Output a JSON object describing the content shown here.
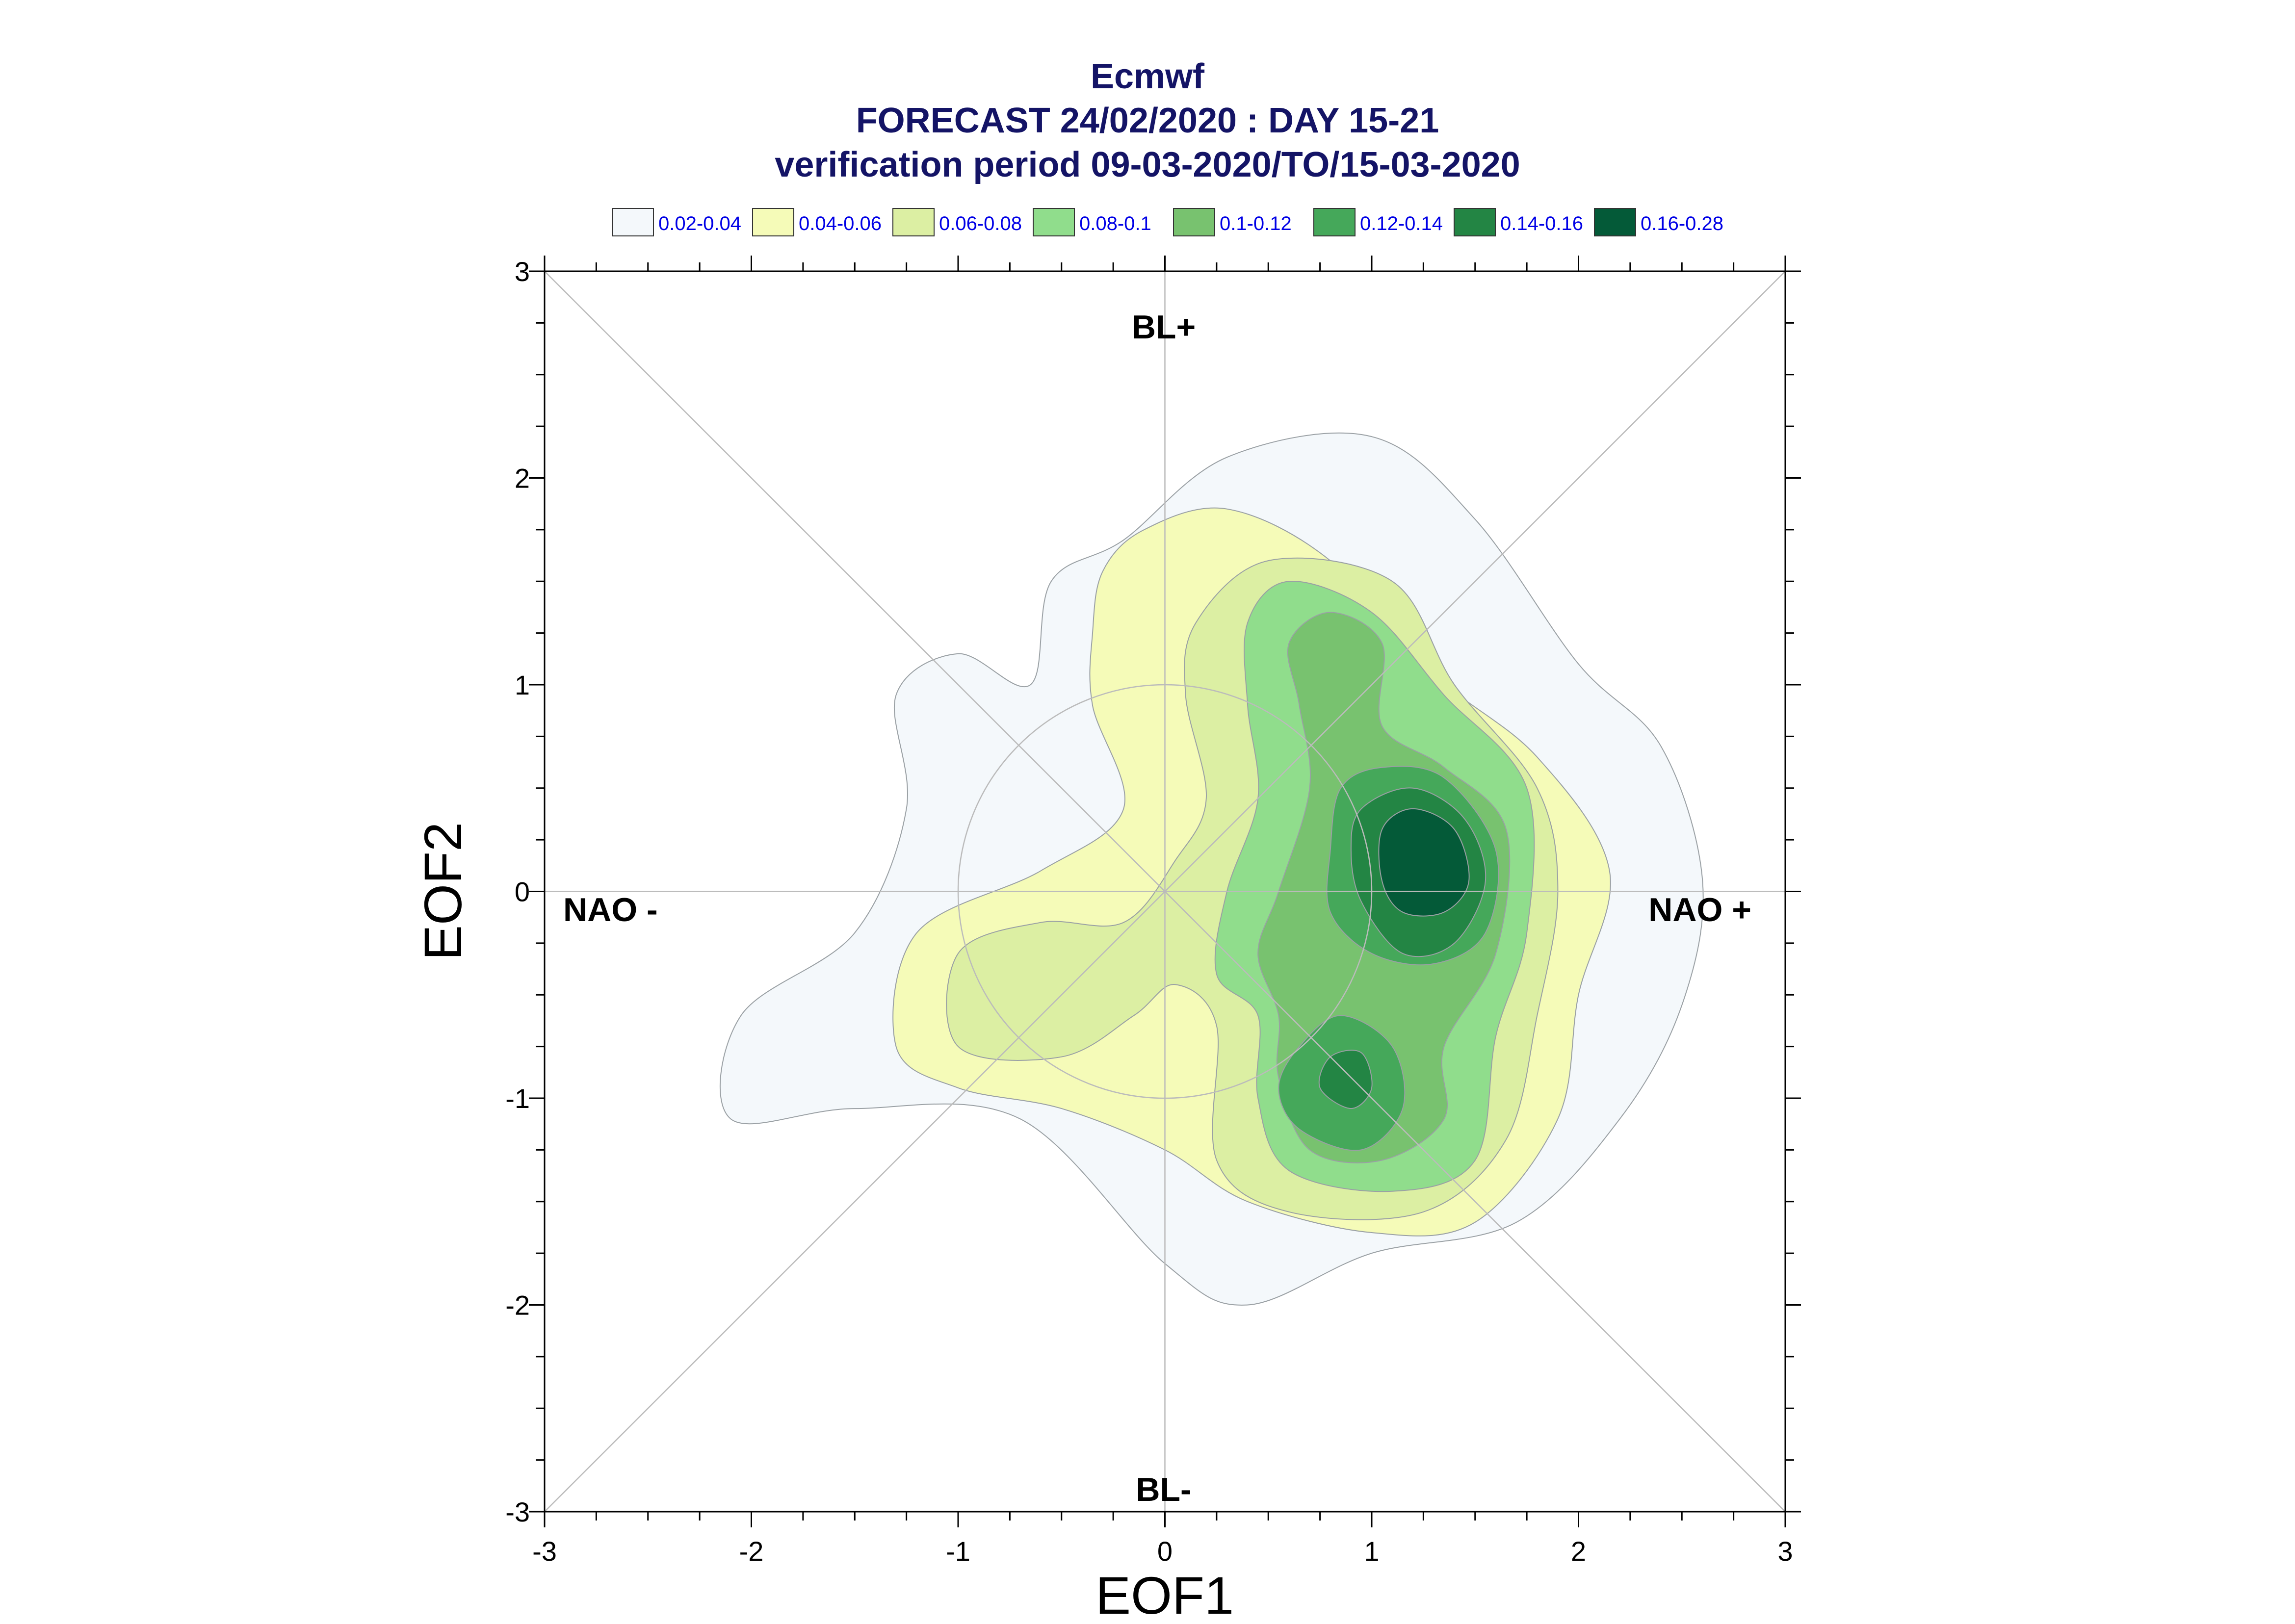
{
  "chart_data": {
    "type": "contour",
    "title": [
      "Ecmwf",
      "FORECAST 24/02/2020 : DAY 15-21",
      "verification period 09-03-2020/TO/15-03-2020"
    ],
    "xlabel": "EOF1",
    "ylabel": "EOF2",
    "xlim": [
      -3,
      3
    ],
    "ylim": [
      -3,
      3
    ],
    "xticks": [
      "-3",
      "-2",
      "-1",
      "0",
      "1",
      "2",
      "3"
    ],
    "yticks": [
      "-3",
      "-2",
      "-1",
      "0",
      "1",
      "2",
      "3"
    ],
    "regime_labels": {
      "top": "BL+",
      "bottom": "BL-",
      "left": "NAO -",
      "right": "NAO +"
    },
    "legend": [
      {
        "label": "0.02-0.04",
        "color": "#f4f8fb"
      },
      {
        "label": "0.04-0.06",
        "color": "#f5fbb8"
      },
      {
        "label": "0.06-0.08",
        "color": "#dcefa3"
      },
      {
        "label": "0.08-0.1",
        "color": "#90dd8c"
      },
      {
        "label": "0.1-0.12",
        "color": "#78c26f"
      },
      {
        "label": "0.12-0.14",
        "color": "#45a85a"
      },
      {
        "label": "0.14-0.16",
        "color": "#238544"
      },
      {
        "label": "0.16-0.28",
        "color": "#045a38"
      }
    ],
    "density_maxima": [
      {
        "x": 1.2,
        "y": 0.15,
        "range": "0.16-0.28"
      },
      {
        "x": 0.9,
        "y": -0.95,
        "range": "0.14-0.16"
      }
    ],
    "contours": [
      {
        "level": "0.02-0.04",
        "points": [
          [
            -0.65,
            1.0
          ],
          [
            -0.55,
            1.5
          ],
          [
            -0.2,
            1.7
          ],
          [
            0.3,
            2.1
          ],
          [
            1.0,
            2.2
          ],
          [
            1.5,
            1.8
          ],
          [
            2.0,
            1.1
          ],
          [
            2.4,
            0.7
          ],
          [
            2.6,
            0.05
          ],
          [
            2.5,
            -0.55
          ],
          [
            2.2,
            -1.1
          ],
          [
            1.7,
            -1.6
          ],
          [
            1.0,
            -1.75
          ],
          [
            0.4,
            -2.0
          ],
          [
            0.0,
            -1.8
          ],
          [
            -0.7,
            -1.1
          ],
          [
            -1.5,
            -1.05
          ],
          [
            -2.1,
            -1.1
          ],
          [
            -2.05,
            -0.6
          ],
          [
            -1.5,
            -0.2
          ],
          [
            -1.25,
            0.4
          ],
          [
            -1.3,
            0.95
          ],
          [
            -1.0,
            1.15
          ]
        ]
      },
      {
        "level": "0.04-0.06",
        "points": [
          [
            -0.35,
            1.25
          ],
          [
            -0.3,
            1.55
          ],
          [
            -0.1,
            1.75
          ],
          [
            0.3,
            1.85
          ],
          [
            0.8,
            1.6
          ],
          [
            1.3,
            1.05
          ],
          [
            1.8,
            0.65
          ],
          [
            2.15,
            0.1
          ],
          [
            2.0,
            -0.5
          ],
          [
            1.9,
            -1.1
          ],
          [
            1.5,
            -1.6
          ],
          [
            1.0,
            -1.65
          ],
          [
            0.4,
            -1.5
          ],
          [
            0.0,
            -1.25
          ],
          [
            -0.5,
            -1.05
          ],
          [
            -1.0,
            -0.95
          ],
          [
            -1.3,
            -0.75
          ],
          [
            -1.2,
            -0.2
          ],
          [
            -0.6,
            0.1
          ],
          [
            -0.2,
            0.4
          ],
          [
            -0.35,
            0.9
          ]
        ]
      },
      {
        "level": "0.06-0.08",
        "points": [
          [
            0.15,
            1.3
          ],
          [
            0.5,
            1.6
          ],
          [
            1.1,
            1.5
          ],
          [
            1.4,
            1.0
          ],
          [
            1.8,
            0.5
          ],
          [
            1.9,
            0.0
          ],
          [
            1.8,
            -0.6
          ],
          [
            1.65,
            -1.2
          ],
          [
            1.25,
            -1.55
          ],
          [
            0.6,
            -1.55
          ],
          [
            0.25,
            -1.3
          ],
          [
            0.25,
            -0.65
          ],
          [
            0.05,
            -0.45
          ],
          [
            -0.15,
            -0.6
          ],
          [
            -0.5,
            -0.8
          ],
          [
            -1.0,
            -0.75
          ],
          [
            -1.0,
            -0.3
          ],
          [
            -0.6,
            -0.15
          ],
          [
            -0.2,
            -0.15
          ],
          [
            0.05,
            0.15
          ],
          [
            0.2,
            0.45
          ],
          [
            0.1,
            0.95
          ]
        ]
      },
      {
        "level": "0.08-0.1",
        "points": [
          [
            0.4,
            1.3
          ],
          [
            0.6,
            1.5
          ],
          [
            1.0,
            1.35
          ],
          [
            1.35,
            0.95
          ],
          [
            1.75,
            0.5
          ],
          [
            1.75,
            -0.2
          ],
          [
            1.6,
            -0.7
          ],
          [
            1.5,
            -1.3
          ],
          [
            1.1,
            -1.45
          ],
          [
            0.6,
            -1.35
          ],
          [
            0.45,
            -1.0
          ],
          [
            0.45,
            -0.6
          ],
          [
            0.25,
            -0.4
          ],
          [
            0.3,
            0.0
          ],
          [
            0.45,
            0.45
          ],
          [
            0.4,
            0.9
          ]
        ]
      },
      {
        "level": "0.1-0.12",
        "points": [
          [
            0.6,
            1.2
          ],
          [
            0.8,
            1.35
          ],
          [
            1.05,
            1.2
          ],
          [
            1.05,
            0.8
          ],
          [
            1.35,
            0.6
          ],
          [
            1.65,
            0.3
          ],
          [
            1.6,
            -0.3
          ],
          [
            1.35,
            -0.75
          ],
          [
            1.35,
            -1.1
          ],
          [
            1.05,
            -1.3
          ],
          [
            0.7,
            -1.25
          ],
          [
            0.55,
            -0.9
          ],
          [
            0.55,
            -0.6
          ],
          [
            0.45,
            -0.3
          ],
          [
            0.55,
            0.0
          ],
          [
            0.7,
            0.5
          ],
          [
            0.65,
            0.9
          ]
        ]
      },
      {
        "level": "0.12-0.14",
        "points": [
          [
            0.85,
            0.5
          ],
          [
            1.05,
            0.6
          ],
          [
            1.35,
            0.55
          ],
          [
            1.6,
            0.2
          ],
          [
            1.55,
            -0.2
          ],
          [
            1.3,
            -0.35
          ],
          [
            1.0,
            -0.3
          ],
          [
            0.8,
            -0.1
          ],
          [
            0.8,
            0.2
          ]
        ]
      },
      {
        "level": "0.12-0.14",
        "points": [
          [
            0.65,
            -0.75
          ],
          [
            0.85,
            -0.6
          ],
          [
            1.1,
            -0.75
          ],
          [
            1.15,
            -1.05
          ],
          [
            0.95,
            -1.25
          ],
          [
            0.65,
            -1.15
          ],
          [
            0.55,
            -0.95
          ]
        ]
      },
      {
        "level": "0.14-0.16",
        "points": [
          [
            0.95,
            0.4
          ],
          [
            1.2,
            0.5
          ],
          [
            1.45,
            0.35
          ],
          [
            1.55,
            0.05
          ],
          [
            1.4,
            -0.25
          ],
          [
            1.15,
            -0.3
          ],
          [
            0.95,
            -0.05
          ],
          [
            0.9,
            0.2
          ]
        ]
      },
      {
        "level": "0.14-0.16",
        "points": [
          [
            0.8,
            -0.8
          ],
          [
            0.95,
            -0.78
          ],
          [
            1.0,
            -0.95
          ],
          [
            0.9,
            -1.05
          ],
          [
            0.75,
            -0.95
          ]
        ]
      },
      {
        "level": "0.16-0.28",
        "points": [
          [
            1.05,
            0.3
          ],
          [
            1.2,
            0.4
          ],
          [
            1.4,
            0.3
          ],
          [
            1.47,
            0.05
          ],
          [
            1.35,
            -0.1
          ],
          [
            1.15,
            -0.1
          ],
          [
            1.05,
            0.05
          ]
        ]
      }
    ]
  }
}
